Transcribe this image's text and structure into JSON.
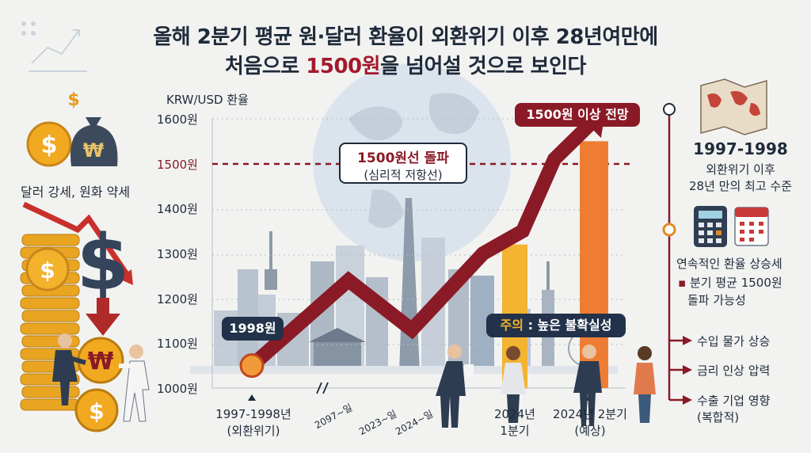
{
  "title": {
    "line1": "올해 2분기 평균 원·달러 환율이 외환위기 이후 28년여만에",
    "line2_pre": "처음으로 ",
    "line2_highlight": "1500원",
    "line2_post": "을 넘어설 것으로 보인다"
  },
  "left_caption": "달러 강세, 원화 약세",
  "chart_data": {
    "type": "line",
    "y_unit": "KRW/USD 환율",
    "ylim": [
      1000,
      1600
    ],
    "y_ticks": [
      "1000원",
      "1100원",
      "1200원",
      "1300원",
      "1400원",
      "1500원",
      "1600원"
    ],
    "threshold": 1500,
    "threshold_tick_color": "#8a1a26",
    "x_labels": [
      {
        "l1": "1997-1998년",
        "l2": "(외환위기)"
      },
      {
        "l1": "2024년",
        "l2": "1분기"
      },
      {
        "l1": "2024년 2분기",
        "l2": "(예상)"
      }
    ],
    "rotated_labels": [
      "2097~일",
      "2023~일",
      "2024~일"
    ],
    "series": [
      {
        "values": [
          1050,
          1240,
          1130,
          1300,
          1350,
          1510,
          1600
        ]
      }
    ],
    "bars": [
      {
        "category": "2024년 1분기",
        "value": 1320,
        "color": "#f2b431"
      },
      {
        "category": "2024년 2분기 (예상)",
        "value": 1550,
        "color": "#ee7d33"
      }
    ],
    "annotations": {
      "threshold_title": "1500원선 돌파",
      "threshold_sub": "(심리적 저항선)",
      "forecast": "1500원 이상 전망",
      "start_point": "1998원",
      "caution_label": "주의",
      "caution_text": " : 높은 불확실성"
    },
    "colors": {
      "line": "#8a1a26",
      "start_marker": "#f29a3a"
    }
  },
  "right_panel": {
    "period": "1997-1998",
    "period_desc_1": "외환위기 이후",
    "period_desc_2": "28년 만의 최고 수준",
    "trend_title": "연속적인 환율 상승세",
    "trend_desc_1": "분기 평균 1500원",
    "trend_desc_2": "돌파 가능성",
    "impacts": [
      "수입 물가 상승",
      "금리 인상 압력",
      "수출 기업 영향"
    ],
    "impacts_sub": "(복합적)"
  }
}
